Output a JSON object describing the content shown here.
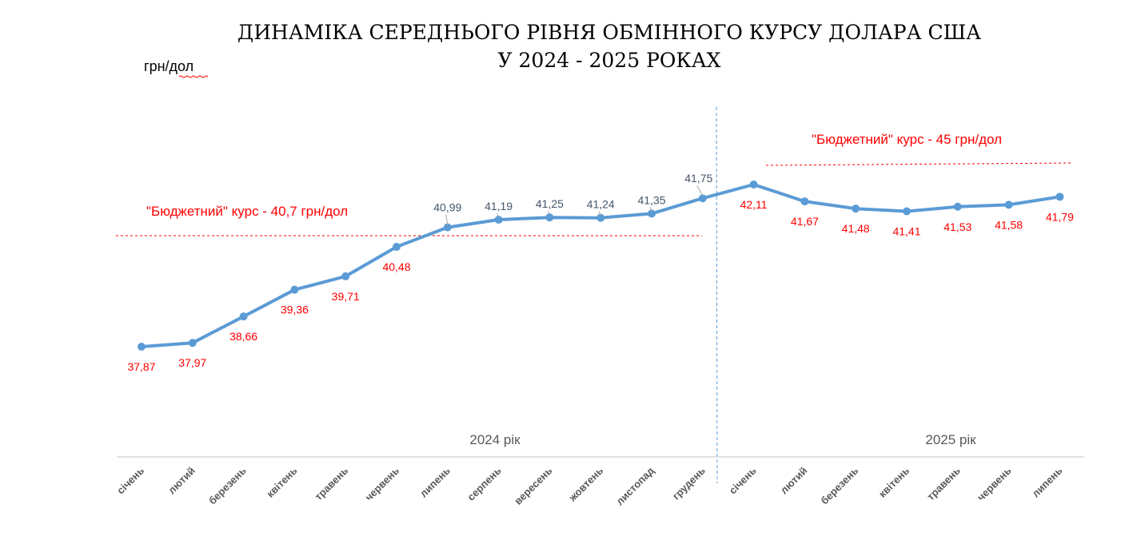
{
  "chart_data": {
    "type": "line",
    "title_line1": "ДИНАМІКА СЕРЕДНЬОГО РІВНЯ ОБМІННОГО КУРСУ ДОЛАРА США",
    "title_line2": "У 2024 - 2025 РОКАХ",
    "unit_label": "грн/дол",
    "categories": [
      "січень",
      "лютий",
      "березень",
      "квітень",
      "травень",
      "червень",
      "липень",
      "серпень",
      "вересень",
      "жовтень",
      "листопад",
      "грудень",
      "січень",
      "лютий",
      "березень",
      "квітень",
      "травень",
      "червень",
      "липень"
    ],
    "series": [
      {
        "values": [
          37.87,
          37.97,
          38.66,
          39.36,
          39.71,
          40.48,
          40.99,
          41.19,
          41.25,
          41.24,
          41.35,
          41.75,
          42.11,
          41.67,
          41.48,
          41.41,
          41.53,
          41.58,
          41.79
        ]
      }
    ],
    "data_labels": [
      "37,87",
      "37,97",
      "38,66",
      "39,36",
      "39,71",
      "40,48",
      "40,99",
      "41,19",
      "41,25",
      "41,24",
      "41,35",
      "41,75",
      "42,11",
      "41,67",
      "41,48",
      "41,41",
      "41,53",
      "41,58",
      "41,79"
    ],
    "year_groups": [
      {
        "label": "2024 рік",
        "start": 0,
        "end": 11
      },
      {
        "label": "2025 рік",
        "start": 12,
        "end": 18
      }
    ],
    "budget_lines": [
      {
        "label": "\"Бюджетний\" курс - 40,7 грн/дол",
        "value": 40.7,
        "year": "2024"
      },
      {
        "label": "\"Бюджетний\" курс - 45 грн/дол",
        "value": 45,
        "year": "2025"
      }
    ],
    "colors": {
      "line": "#5B9BD5",
      "budget": "#FF0000",
      "label_red": "#FF0000",
      "label_gray": "#44546A",
      "axis": "#D9D9D9",
      "year_text": "#595959"
    }
  }
}
